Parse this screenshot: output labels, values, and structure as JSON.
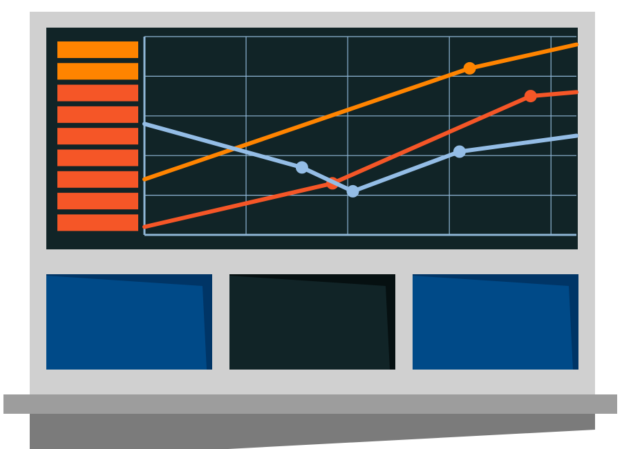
{
  "colors": {
    "frame": "#d0d0d0",
    "screen_bg": "#112427",
    "grid": "#8fb6d6",
    "series_orange": "#ff8400",
    "series_red": "#f55627",
    "series_blue": "#94bde6",
    "level_bar_top": "#ff8400",
    "level_bar_rest": "#f55627",
    "monitor_blue": "#004a88",
    "monitor_blue_shadow": "#003566",
    "monitor_dark": "#112427",
    "monitor_dark_shadow": "#061011",
    "desk_top": "#9d9d9d",
    "desk_front": "#7b7b7b"
  },
  "level_indicator": {
    "total_bars": 9,
    "highlighted_bars": 2
  },
  "chart_data": {
    "type": "line",
    "xlim": [
      0,
      8.5
    ],
    "ylim": [
      0,
      5
    ],
    "grid": true,
    "series": [
      {
        "color_key": "series_orange",
        "x": [
          0,
          6.4,
          8.5
        ],
        "y": [
          1.4,
          4.2,
          4.8
        ],
        "markers": [
          1
        ]
      },
      {
        "color_key": "series_red",
        "x": [
          0,
          3.7,
          7.6,
          8.5
        ],
        "y": [
          0.2,
          1.3,
          3.5,
          3.6
        ],
        "markers": [
          1,
          2
        ]
      },
      {
        "color_key": "series_blue",
        "x": [
          0,
          3.1,
          4.1,
          6.2,
          8.5
        ],
        "y": [
          2.8,
          1.7,
          1.1,
          2.1,
          2.5
        ],
        "markers": [
          1,
          2,
          3
        ]
      }
    ]
  },
  "monitors": [
    {
      "style": "blue"
    },
    {
      "style": "dark"
    },
    {
      "style": "blue"
    }
  ]
}
